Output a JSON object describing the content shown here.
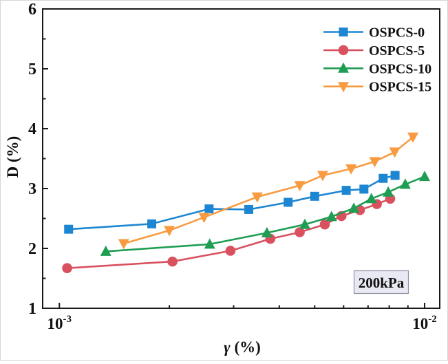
{
  "figure": {
    "title": "",
    "annotation_label": "200kPa"
  },
  "chart_data": {
    "type": "line",
    "title": "",
    "xlabel_symbol": "γ",
    "xlabel_suffix": " (%)",
    "ylabel": "D (%)",
    "grid": false,
    "legend": {
      "position": "top-right-inside",
      "border": "none"
    },
    "xaxis": {
      "scale": "log",
      "min": 0.0009,
      "max": 0.011,
      "major_ticks": [
        {
          "value": 0.001,
          "mantissa": "10",
          "exponent": "-3"
        },
        {
          "value": 0.01,
          "mantissa": "10",
          "exponent": "-2"
        }
      ],
      "minor_ticks": [
        0.002,
        0.003,
        0.004,
        0.005,
        0.006,
        0.007,
        0.008,
        0.009
      ]
    },
    "yaxis": {
      "scale": "linear",
      "min": 1,
      "max": 6,
      "major_ticks": [
        1,
        2,
        3,
        4,
        5,
        6
      ],
      "minor_ticks": [
        1.5,
        2.5,
        3.5,
        4.5,
        5.5
      ]
    },
    "annotation": {
      "text": "200kPa",
      "fill": "#e9e9f4",
      "border": "#9393a3",
      "text_color": "#111111"
    },
    "axis_color": "#1a1a1a",
    "series": [
      {
        "name": "OSPCS-0",
        "marker": "square",
        "color": "#1d86d2",
        "x": [
          0.00106,
          0.00179,
          0.00257,
          0.0033,
          0.00423,
          0.005,
          0.0061,
          0.00682,
          0.0077,
          0.0083
        ],
        "y": [
          2.32,
          2.41,
          2.66,
          2.65,
          2.77,
          2.87,
          2.97,
          2.99,
          3.17,
          3.22
        ]
      },
      {
        "name": "OSPCS-5",
        "marker": "circle",
        "color": "#d9505e",
        "x": [
          0.00105,
          0.00204,
          0.00294,
          0.00378,
          0.00455,
          0.00533,
          0.00592,
          0.00665,
          0.0074,
          0.00805
        ],
        "y": [
          1.67,
          1.78,
          1.96,
          2.16,
          2.27,
          2.4,
          2.54,
          2.64,
          2.74,
          2.83
        ]
      },
      {
        "name": "OSPCS-10",
        "marker": "triangle-up",
        "color": "#1f9d52",
        "x": [
          0.00134,
          0.00258,
          0.0037,
          0.0047,
          0.00556,
          0.0064,
          0.00715,
          0.00795,
          0.00885,
          0.01
        ],
        "y": [
          1.95,
          2.07,
          2.26,
          2.4,
          2.53,
          2.67,
          2.83,
          2.94,
          3.07,
          3.2
        ]
      },
      {
        "name": "OSPCS-15",
        "marker": "triangle-down",
        "color": "#f89b40",
        "x": [
          0.0015,
          0.002,
          0.00249,
          0.00348,
          0.00455,
          0.00526,
          0.00629,
          0.0073,
          0.00828,
          0.00929
        ],
        "y": [
          2.08,
          2.3,
          2.52,
          2.86,
          3.05,
          3.22,
          3.33,
          3.45,
          3.61,
          3.86
        ]
      }
    ]
  }
}
